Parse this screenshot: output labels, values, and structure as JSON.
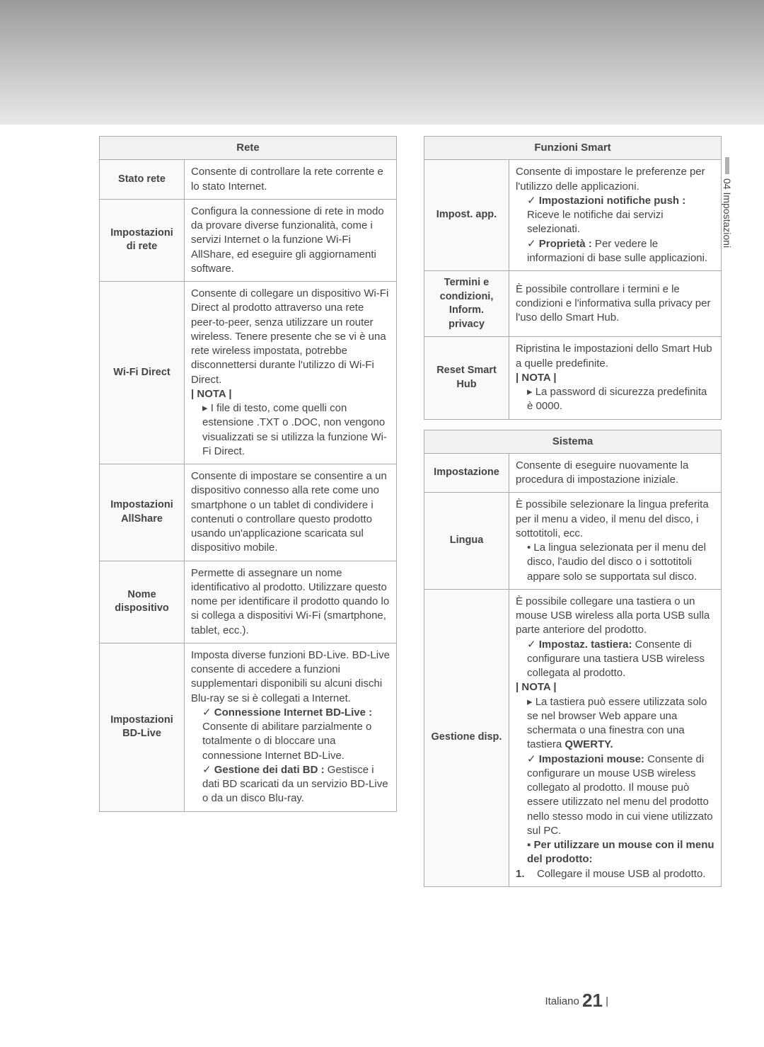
{
  "side_tab": "04   Impostazioni",
  "left": {
    "header": "Rete",
    "rows": [
      {
        "label": "Stato rete",
        "body": [
          {
            "t": "Consente di controllare la rete corrente e lo stato Internet."
          }
        ]
      },
      {
        "label": "Impostazioni di rete",
        "body": [
          {
            "t": "Configura la connessione di rete in modo da provare diverse funzionalità, come i servizi Internet o la funzione Wi-Fi AllShare, ed eseguire gli aggiornamenti software."
          }
        ]
      },
      {
        "label": "Wi-Fi Direct",
        "body": [
          {
            "t": "Consente di collegare un dispositivo Wi-Fi Direct al prodotto attraverso una rete peer-to-peer, senza utilizzare un router wireless. Tenere presente che se vi è una rete wireless impostata, potrebbe disconnettersi durante l'utilizzo di Wi-Fi Direct."
          },
          {
            "cls": "note",
            "t": "| NOTA |"
          },
          {
            "cls": "tri",
            "t": "I file di testo, come quelli con estensione .TXT o .DOC, non vengono visualizzati se si utilizza la funzione Wi-Fi Direct."
          }
        ]
      },
      {
        "label": "Impostazioni AllShare",
        "body": [
          {
            "t": "Consente di impostare se consentire a un dispositivo connesso alla rete come uno smartphone o un tablet di condividere i contenuti o controllare questo prodotto usando un'applicazione scaricata sul dispositivo mobile."
          }
        ]
      },
      {
        "label": "Nome dispositivo",
        "body": [
          {
            "t": "Permette di assegnare un nome identificativo al prodotto. Utilizzare questo nome per identificare il prodotto quando lo si collega a dispositivi Wi-Fi (smartphone, tablet, ecc.)."
          }
        ]
      },
      {
        "label": "Impostazioni BD-Live",
        "body": [
          {
            "t": "Imposta diverse funzioni BD-Live. BD-Live consente di accedere a funzioni supplementari disponibili su alcuni dischi Blu-ray se si è collegati a Internet."
          },
          {
            "cls": "chk",
            "html": "<span class='bold'>Connessione Internet BD-Live :</span> Consente di abilitare parzialmente o totalmente o di bloccare una connessione Internet BD-Live."
          },
          {
            "cls": "chk",
            "html": "<span class='bold'>Gestione dei dati BD :</span> Gestisce i dati BD scaricati da un servizio BD-Live o da un disco Blu-ray."
          }
        ]
      }
    ]
  },
  "right1": {
    "header": "Funzioni Smart",
    "rows": [
      {
        "label": "Impost. app.",
        "body": [
          {
            "t": "Consente di impostare le preferenze per l'utilizzo delle applicazioni."
          },
          {
            "cls": "chk",
            "html": "<span class='bold'>Impostazioni notifiche push :</span> Riceve le notifiche dai servizi selezionati."
          },
          {
            "cls": "chk",
            "html": "<span class='bold'>Proprietà :</span> Per vedere le informazioni di base sulle applicazioni."
          }
        ]
      },
      {
        "label": "Termini e condizioni, Inform. privacy",
        "body": [
          {
            "t": "È possibile controllare i termini e le condizioni e l'informativa sulla privacy per l'uso dello Smart Hub."
          }
        ]
      },
      {
        "label": "Reset Smart Hub",
        "body": [
          {
            "t": "Ripristina le impostazioni dello Smart Hub a quelle predefinite."
          },
          {
            "cls": "note",
            "t": "| NOTA |"
          },
          {
            "cls": "tri",
            "t": "La password di sicurezza predefinita è 0000."
          }
        ]
      }
    ]
  },
  "right2": {
    "header": "Sistema",
    "rows": [
      {
        "label": "Impostazione",
        "body": [
          {
            "t": "Consente di eseguire nuovamente la procedura di impostazione iniziale."
          }
        ]
      },
      {
        "label": "Lingua",
        "body": [
          {
            "t": "È possibile selezionare la lingua preferita per il menu a video, il menu del disco, i sottotitoli, ecc."
          },
          {
            "cls": "bul",
            "t": "La lingua selezionata per il menu del disco, l'audio del disco o i sottotitoli appare solo se supportata sul disco."
          }
        ]
      },
      {
        "label": "Gestione disp.",
        "body": [
          {
            "t": "È possibile collegare una tastiera o un mouse USB wireless alla porta USB sulla parte anteriore del prodotto."
          },
          {
            "cls": "chk",
            "html": "<span class='bold'>Impostaz. tastiera:</span> Consente di configurare una tastiera USB wireless collegata al prodotto."
          },
          {
            "cls": "note",
            "t": "| NOTA |"
          },
          {
            "cls": "tri",
            "html": "La tastiera può essere utilizzata solo se nel browser Web appare una schermata o una finestra con una tastiera <span class='bold'>QWERTY.</span>"
          },
          {
            "cls": "chk",
            "html": "<span class='bold'>Impostazioni mouse:</span> Consente di configurare un mouse USB wireless collegato al prodotto. Il mouse può essere utilizzato nel menu del prodotto nello stesso modo in cui viene utilizzato sul PC."
          },
          {
            "cls": "sq bold",
            "t": "Per utilizzare un mouse con il menu del prodotto:"
          },
          {
            "numbered": "1.",
            "t": "Collegare il mouse USB al prodotto."
          }
        ]
      }
    ]
  },
  "footer": {
    "lang": "Italiano",
    "page": "21",
    "bar": "|"
  }
}
